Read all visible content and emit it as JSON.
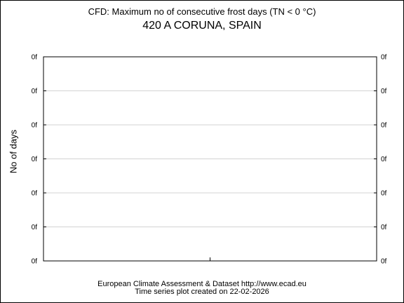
{
  "chart_data": {
    "type": "line",
    "title": "CFD: Maximum no of consecutive frost days (TN < 0 °C)",
    "subtitle": "420 A CORUNA, SPAIN",
    "xlabel": "",
    "ylabel": "No of days",
    "y_tick_labels": [
      "0f",
      "0f",
      "0f",
      "0f",
      "0f",
      "0f",
      "0f"
    ],
    "x_tick_labels": [],
    "series": [],
    "grid": true,
    "legend": "none"
  },
  "footer": {
    "line1": "European Climate Assessment & Dataset  http://www.ecad.eu",
    "line2": "Time series plot created on 22-02-2026"
  },
  "colors": {
    "frame": "#000000",
    "grid": "#d3d3d3",
    "background": "#ffffff"
  }
}
